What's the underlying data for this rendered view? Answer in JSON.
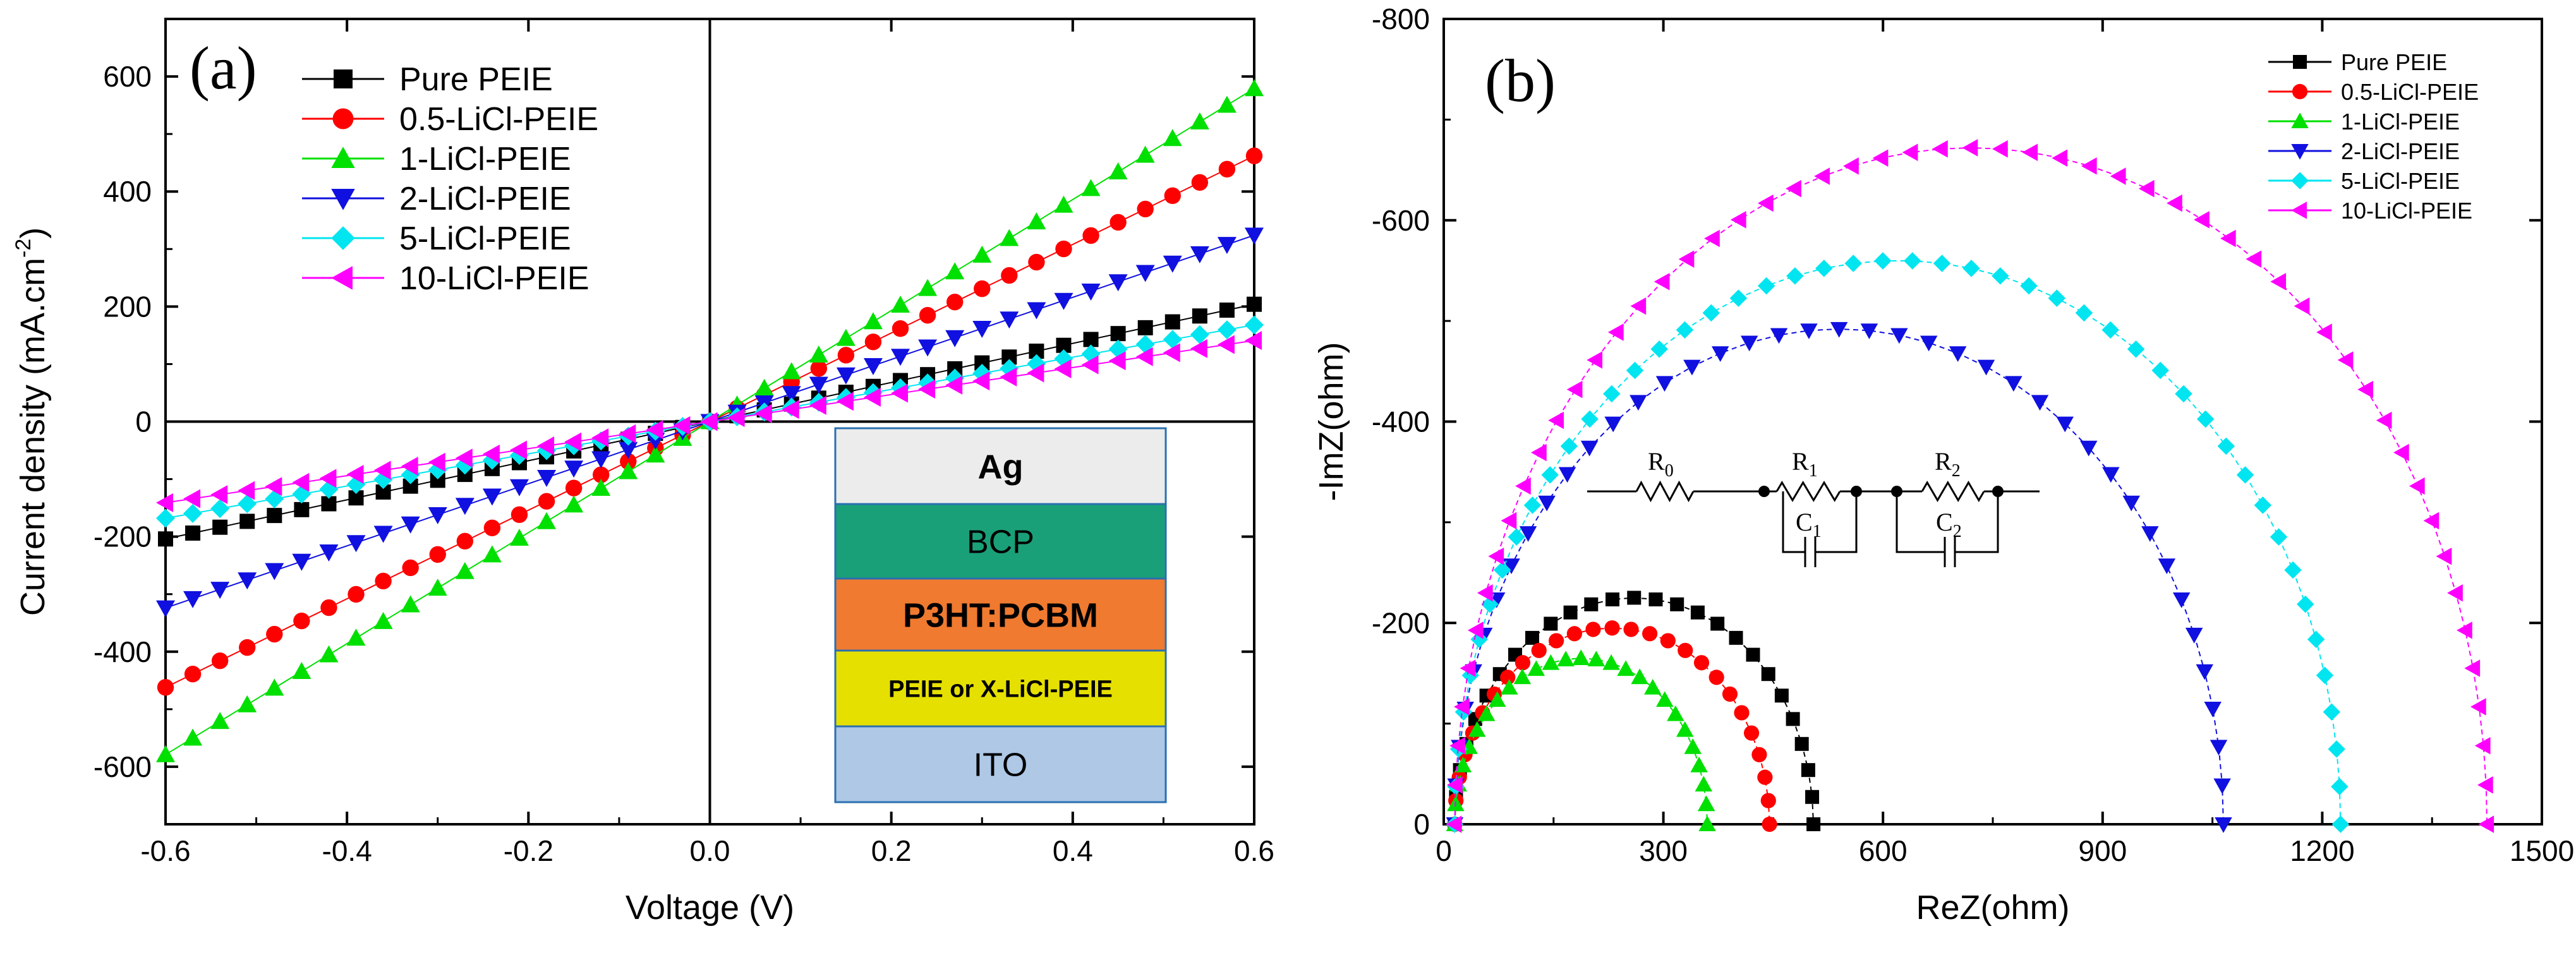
{
  "colors": {
    "Pure PEIE": "#000000",
    "0.5-LiCl-PEIE": "#ff0000",
    "1-LiCl-PEIE": "#00e000",
    "2-LiCl-PEIE": "#1010e0",
    "5-LiCl-PEIE": "#00e5f0",
    "10-LiCl-PEIE": "#ff00ff"
  },
  "device_stack": {
    "layers": [
      "Ag",
      "BCP",
      "P3HT:PCBM",
      "PEIE or X-LiCl-PEIE",
      "ITO"
    ],
    "layer_colors": [
      "#ececec",
      "#1aa078",
      "#f07a30",
      "#e6e000",
      "#aec8e6"
    ]
  },
  "circuit": {
    "labels": [
      "R",
      "0",
      "R",
      "1",
      "C",
      "1",
      "R",
      "2",
      "C",
      "2"
    ]
  },
  "chart_data": [
    {
      "panel": "(a)",
      "type": "line",
      "xlabel": "Voltage (V)",
      "ylabel": "Current density (mA.cm",
      "ylabel_sup": "-2",
      "ylabel_end": ")",
      "xlim": [
        -0.6,
        0.6
      ],
      "ylim": [
        -700,
        700
      ],
      "xticks": [
        "-0.6",
        "-0.4",
        "-0.2",
        "0.0",
        "0.2",
        "0.4",
        "0.6"
      ],
      "yticks": [
        "-600",
        "-400",
        "-200",
        "0",
        "200",
        "400",
        "600"
      ],
      "legend_position": "top-left",
      "series": [
        {
          "name": "Pure PEIE",
          "marker": "square",
          "slope": 340
        },
        {
          "name": "0.5-LiCl-PEIE",
          "marker": "circle",
          "slope": 770
        },
        {
          "name": "1-LiCl-PEIE",
          "marker": "triangle-up",
          "slope": 965
        },
        {
          "name": "2-LiCl-PEIE",
          "marker": "triangle-down",
          "slope": 540
        },
        {
          "name": "5-LiCl-PEIE",
          "marker": "diamond",
          "slope": 280
        },
        {
          "name": "10-LiCl-PEIE",
          "marker": "triangle-left",
          "slope": 235
        }
      ]
    },
    {
      "panel": "(b)",
      "type": "scatter",
      "xlabel": "ReZ(ohm)",
      "ylabel": "-ImZ(ohm)",
      "xlim": [
        0,
        1500
      ],
      "ylim": [
        0,
        -800
      ],
      "xticks": [
        "0",
        "300",
        "600",
        "900",
        "1200",
        "1500"
      ],
      "yticks": [
        "0",
        "-200",
        "-400",
        "-600",
        "-800"
      ],
      "legend_position": "top-right",
      "series": [
        {
          "name": "Pure PEIE",
          "marker": "square",
          "r_start": 15,
          "r_end": 505,
          "peak": 225
        },
        {
          "name": "0.5-LiCl-PEIE",
          "marker": "circle",
          "r_start": 15,
          "r_end": 445,
          "peak": 195
        },
        {
          "name": "1-LiCl-PEIE",
          "marker": "triangle-up",
          "r_start": 15,
          "r_end": 360,
          "peak": 165
        },
        {
          "name": "2-LiCl-PEIE",
          "marker": "triangle-down",
          "r_start": 15,
          "r_end": 1065,
          "peak": 492
        },
        {
          "name": "5-LiCl-PEIE",
          "marker": "diamond",
          "r_start": 15,
          "r_end": 1225,
          "peak": 560
        },
        {
          "name": "10-LiCl-PEIE",
          "marker": "triangle-left",
          "r_start": 15,
          "r_end": 1425,
          "peak": 672
        }
      ]
    }
  ]
}
